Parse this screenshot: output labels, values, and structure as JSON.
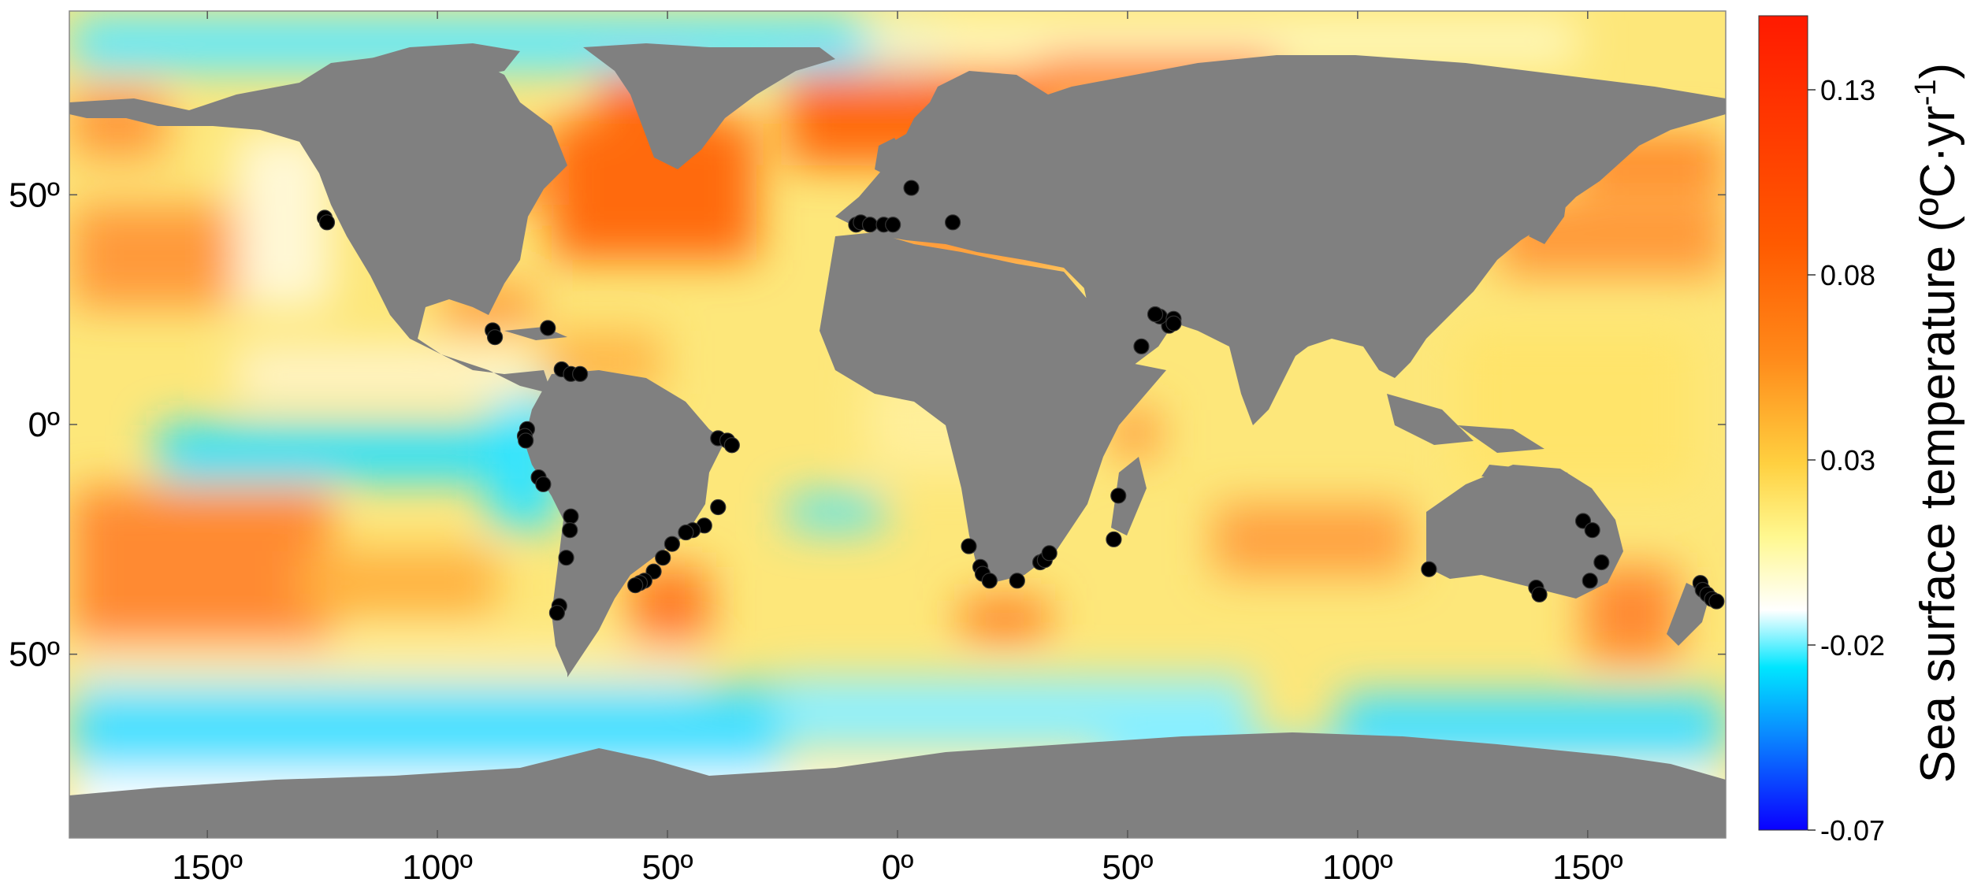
{
  "map": {
    "projection": "equirectangular",
    "x_axis": {
      "ticks": [
        {
          "value": -150,
          "label": "150º"
        },
        {
          "value": -100,
          "label": "100º"
        },
        {
          "value": -50,
          "label": "50º"
        },
        {
          "value": 0,
          "label": "0º"
        },
        {
          "value": 50,
          "label": "50º"
        },
        {
          "value": 100,
          "label": "100º"
        },
        {
          "value": 150,
          "label": "150º"
        }
      ]
    },
    "y_axis": {
      "ticks": [
        {
          "value": 50,
          "label": "50º"
        },
        {
          "value": 0,
          "label": "0º"
        },
        {
          "value": -50,
          "label": "50º"
        }
      ]
    },
    "colors": {
      "land": "#808080",
      "sites": "#000000"
    },
    "site_count_note": "black circles mark coastal sites"
  },
  "colorbar": {
    "title": "Sea surface temperature (ºC·yr",
    "title_sup": "-1",
    "title_close": ")",
    "range": [
      -0.07,
      0.15
    ],
    "ticks": [
      {
        "value": 0.13,
        "label": "0.13"
      },
      {
        "value": 0.08,
        "label": "0.08"
      },
      {
        "value": 0.03,
        "label": "0.03"
      },
      {
        "value": -0.02,
        "label": "-0.02"
      },
      {
        "value": -0.07,
        "label": "-0.07"
      }
    ],
    "colors": [
      "#0a00ff",
      "#0a8cff",
      "#00e6ff",
      "#ffffff",
      "#fff890",
      "#ffd040",
      "#ff8a1a",
      "#ff5a00",
      "#ff1a00"
    ]
  },
  "chart_data": {
    "type": "scatter",
    "title": "",
    "xlabel": "",
    "ylabel": "",
    "xlim": [
      -180,
      180
    ],
    "ylim": [
      -90,
      90
    ],
    "series": [
      {
        "x": [
          -124.5,
          -124,
          -88,
          -87.5,
          -76,
          -73,
          -71,
          -69,
          -80.5,
          -81,
          -80.8,
          -78,
          -77,
          -71,
          -71.2,
          -72,
          -73.5,
          -74,
          -39,
          -37,
          -36,
          -39,
          -42,
          -44.5,
          -46,
          -49,
          -51,
          -53,
          -55,
          -56,
          -57,
          -9,
          -8,
          -6,
          -3,
          -1,
          3,
          12,
          15.5,
          18,
          18.5,
          20,
          26,
          31,
          32,
          33,
          59,
          57,
          56,
          60,
          60,
          53,
          47,
          48,
          115.5,
          138.8,
          139.5,
          149,
          150.5,
          153,
          151,
          174.5,
          175,
          176,
          177,
          178
        ],
        "y": [
          45,
          44,
          20.5,
          19,
          21,
          12,
          11,
          11,
          -1,
          -2.5,
          -3.5,
          -11.5,
          -13,
          -20,
          -23,
          -29,
          -39.5,
          -41,
          -3,
          -3.5,
          -4.5,
          -18,
          -22,
          -23,
          -23.5,
          -26,
          -29,
          -32,
          -34,
          -34.5,
          -35,
          43.5,
          44,
          43.5,
          43.5,
          43.5,
          51.5,
          44,
          -26.5,
          -31,
          -32.5,
          -34,
          -34,
          -30,
          -29.5,
          -28,
          21.5,
          23.5,
          24,
          23,
          22,
          17,
          -25,
          -15.5,
          -31.5,
          -35.5,
          -37,
          -21,
          -34,
          -30,
          -23,
          -34.5,
          -36,
          -37,
          -38,
          -38.5
        ]
      }
    ]
  }
}
